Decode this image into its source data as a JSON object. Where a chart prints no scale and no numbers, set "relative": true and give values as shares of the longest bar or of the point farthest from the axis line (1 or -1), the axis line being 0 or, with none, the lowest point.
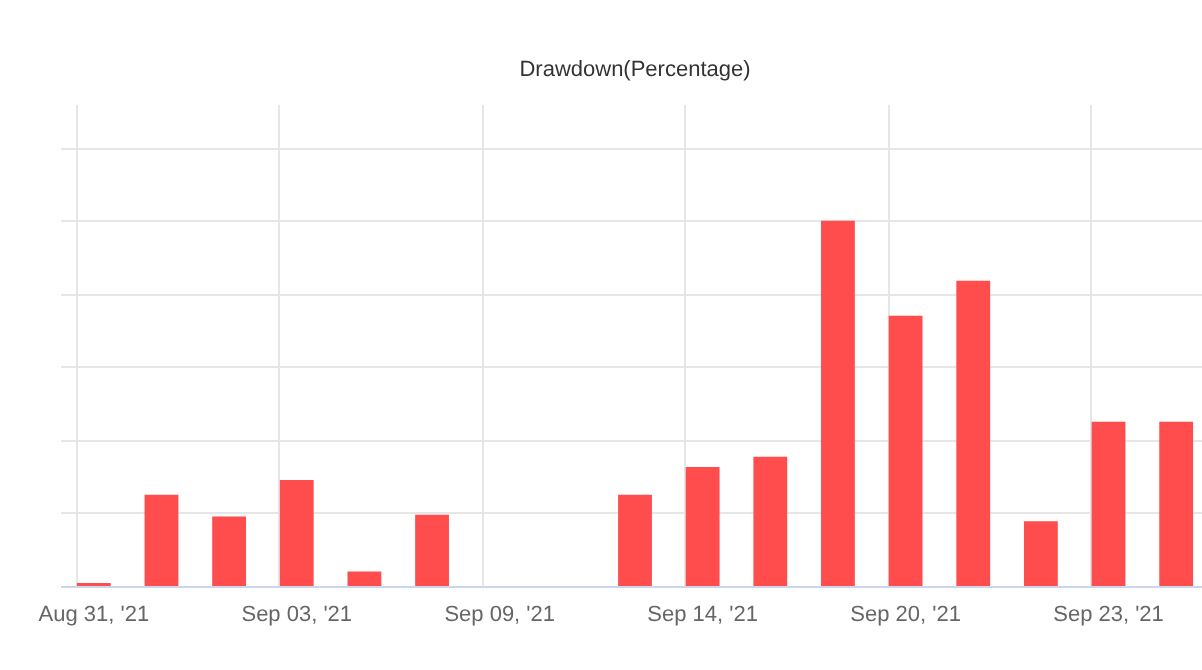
{
  "chart_data": {
    "type": "bar",
    "title": "Drawdown(Percentage)",
    "relative": true,
    "categories": [
      "Aug 31, '21",
      null,
      null,
      "Sep 03, '21",
      null,
      null,
      "Sep 09, '21",
      null,
      null,
      "Sep 14, '21",
      null,
      null,
      "Sep 20, '21",
      null,
      null,
      "Sep 23, '21",
      null
    ],
    "series": [
      {
        "color": "#ff4d4d",
        "values": [
          0.008,
          0.25,
          0.19,
          0.29,
          0.04,
          0.195,
          null,
          null,
          0.25,
          0.326,
          0.354,
          1,
          0.74,
          0.836,
          0.177,
          0.45,
          0.45
        ]
      }
    ],
    "grid": true
  }
}
